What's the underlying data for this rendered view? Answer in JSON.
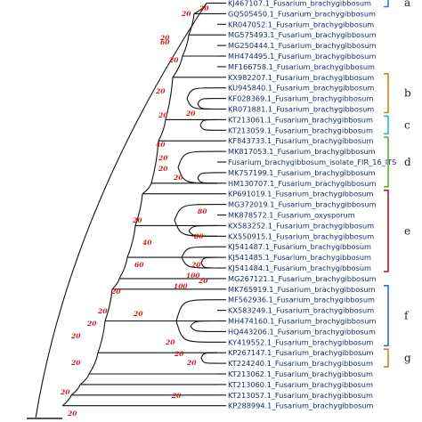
{
  "tree": {
    "taxa": [
      "KJ467107.1_Fusarium_brachygibbosum",
      "GQ505450.1_Fusarium_brachygibbosum",
      "KR047052.1_Fusarium_brachygibbosum",
      "MG575493.1_Fusarium_brachygibbosum",
      "MG250444.1_Fusarium_brachygibbosum",
      "MH474495.1_Fusarium_brachygibbosum",
      "MF166758.1_Fusarium_brachygibbosum",
      "KX982207.1_Fusarium_brachygibbosum",
      "KU945840.1_Fusarium_brachygibbosum",
      "KF028369.1_Fusarium_brachygibbosum",
      "KR071881.1_Fusarium_brachygibbosum",
      "KT213061.1_Fusarium_brachygibbosum",
      "KT213059.1_Fusarium_brachygibbosum",
      "KF843733.1_Fusarium_brachygibbosum",
      "MK817053.1_Fusarium_brachygibbosum",
      "Fusarium_brachygibbosum_isolate_FIR_16_ITS",
      "MK757199.1_Fusarium_brachygibbosum",
      "HM130707.1_Fusarium_brachygibbosum",
      "KP691019.1_Fusarium_brachygibbosum",
      "MG372019.1_Fusarium_brachygibbosum",
      "MK878572.1_Fusarium_oxysporum",
      "KX583252.1_Fusarium_brachygibbosum",
      "KX550915.1_Fusarium_brachygibbosum",
      "KJ541487.1_Fusarium_brachygibbosum",
      "KJ541485.1_Fusarium_brachygibbosum",
      "KJ541484.1_Fusarium_brachygibbosum",
      "MG267121.1_Fusarium_brachygibbosum",
      "MK765919.1_Fusarium_brachygibbosum",
      "MF562936.1_Fusarium_brachygibbosum",
      "KX583249.1_Fusarium_brachygibbosum",
      "MH474160.1_Fusarium_brachygibbosum",
      "HQ443206.1_Fusarium_brachygibbosum",
      "KY419552.1_Fusarium_brachygibbosum",
      "KP267147.1_Fusarium_brachygibbosum",
      "KT224240.1_Fusarium_brachygibbosum",
      "KT213062.1_Fusarium_brachygibbosum",
      "KT213060.1_Fusarium_brachygibbosum",
      "KT213057.1_Fusarium_brachygibbosum",
      "KP288994.1_Fusarium_brachygibbosum"
    ],
    "bootstrap": [
      "20",
      "20",
      "20",
      "60",
      "20",
      "20",
      "20",
      "20",
      "40",
      "20",
      "20",
      "20",
      "80",
      "20",
      "80",
      "40",
      "60",
      "20",
      "20",
      "100",
      "100",
      "20",
      "20",
      "20",
      "20",
      "20",
      "20",
      "20",
      "20",
      "20",
      "20",
      "20",
      "20"
    ],
    "clades": [
      {
        "label": "a",
        "color": "#2b7bd6"
      },
      {
        "label": "b",
        "color": "#e07b1c"
      },
      {
        "label": "c",
        "color": "#29b6d9"
      },
      {
        "label": "d",
        "color": "#58b82e"
      },
      {
        "label": "e",
        "color": "#b3122a"
      },
      {
        "label": "f",
        "color": "#2b6fd6"
      },
      {
        "label": "g",
        "color": "#e07b1c"
      }
    ]
  }
}
